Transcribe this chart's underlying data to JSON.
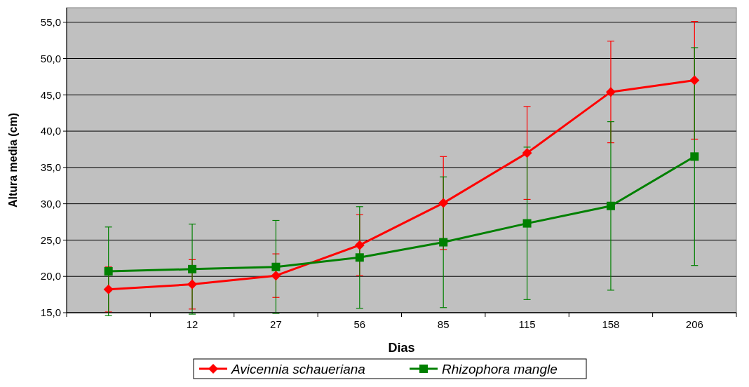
{
  "chart_data": {
    "type": "line",
    "xlabel": "Dias",
    "ylabel": "Altura media (cm)",
    "categories": [
      null,
      "12",
      "27",
      "56",
      "85",
      "115",
      "158",
      "206"
    ],
    "ylim": [
      15,
      57
    ],
    "yticks": [
      {
        "value": 15,
        "label": "15,0"
      },
      {
        "value": 20,
        "label": "20,0"
      },
      {
        "value": 25,
        "label": "25,0"
      },
      {
        "value": 30,
        "label": "30,0"
      },
      {
        "value": 35,
        "label": "35,0"
      },
      {
        "value": 40,
        "label": "40,0"
      },
      {
        "value": 45,
        "label": "45,0"
      },
      {
        "value": 50,
        "label": "50,0"
      },
      {
        "value": 55,
        "label": "55,0"
      }
    ],
    "grid": "y",
    "legend": "bottom",
    "series": [
      {
        "name": "Avicennia schaueriana",
        "color": "#ff0000",
        "marker": "diamond",
        "values": [
          18.2,
          18.9,
          20.1,
          24.3,
          30.1,
          37.0,
          45.4,
          47.0
        ],
        "errors": [
          3.1,
          3.4,
          3.0,
          4.2,
          6.4,
          6.4,
          7.0,
          8.1
        ]
      },
      {
        "name": "Rhizophora mangle",
        "color": "#008000",
        "marker": "square",
        "values": [
          20.7,
          21.0,
          21.3,
          22.6,
          24.7,
          27.3,
          29.7,
          36.5
        ],
        "errors": [
          6.1,
          6.2,
          6.4,
          7.0,
          9.0,
          10.5,
          11.6,
          15.0
        ]
      }
    ]
  }
}
